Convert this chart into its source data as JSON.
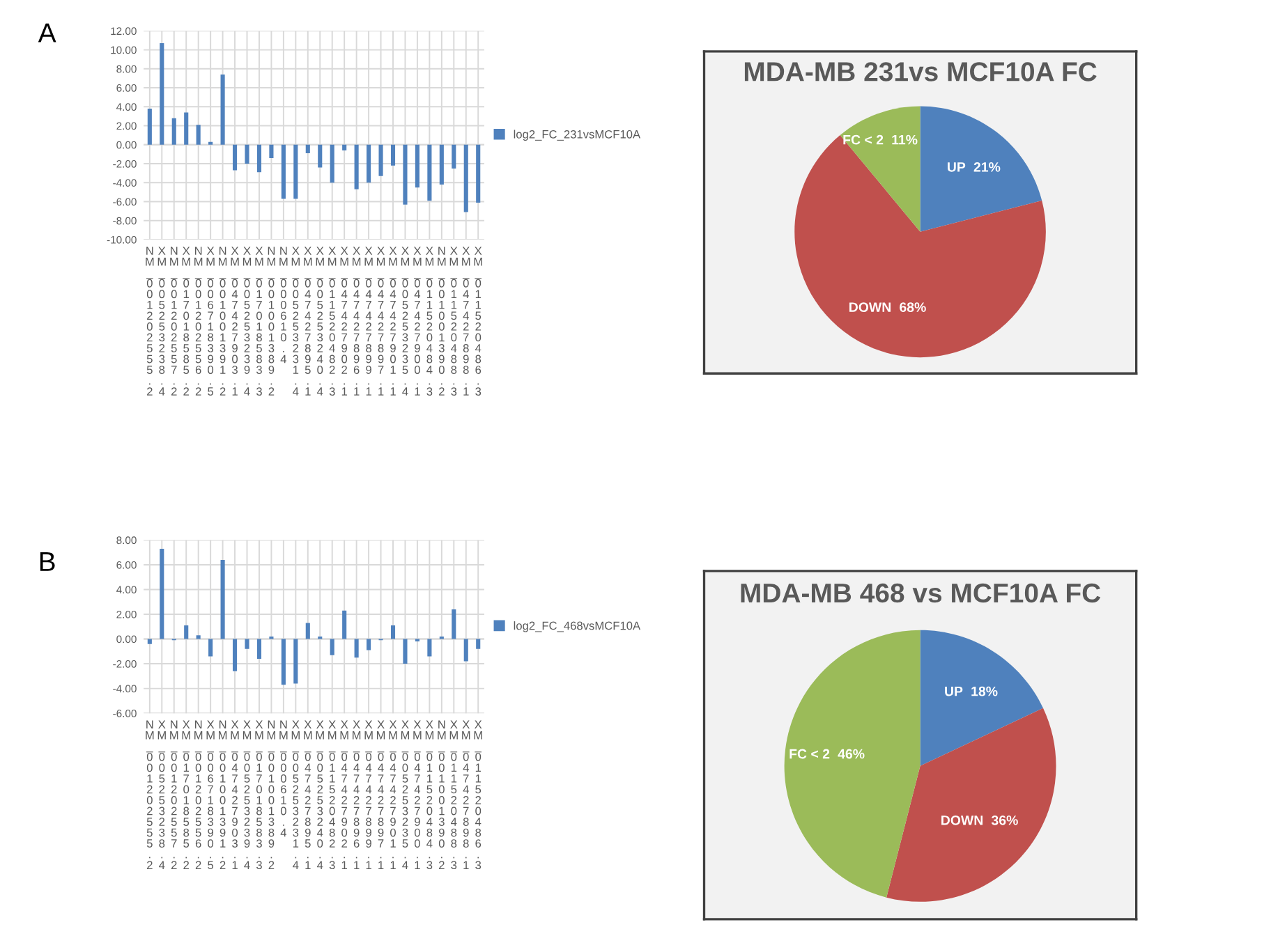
{
  "chart_data": [
    {
      "type": "bar",
      "annotations": [
        "A"
      ],
      "categories": [
        "NM_001202555.2",
        "XM_005253238.4",
        "NM_001202557.2",
        "XM_017018585.2",
        "NM_001202556.2",
        "XM_006718390.5",
        "NM_001001391.2",
        "XM_047427903.1",
        "XM_005253239.4",
        "XM_017018583.3",
        "NM_001001389.2",
        "NM_000610.4",
        "XM_005253231.4",
        "XM_047427895.1",
        "XM_005253240.4",
        "XM_011520482.3",
        "XM_047427902.1",
        "XM_047427896.1",
        "XM_047427899.1",
        "XM_047427897.1",
        "XM_047427901.1",
        "XM_005253235.4",
        "XM_047427900.1",
        "XM_011520484.3",
        "NM_001001390.2",
        "XM_011520488.3",
        "XM_047427898.1",
        "XM_011520486.3"
      ],
      "series": [
        {
          "name": "log2_FC_231vsMCF10A",
          "color": "#4f81bd",
          "values": [
            3.8,
            10.7,
            2.8,
            3.4,
            2.1,
            0.3,
            7.4,
            -2.7,
            -2.0,
            -2.9,
            -1.4,
            -5.7,
            -5.7,
            -0.9,
            -2.4,
            -4.0,
            -0.6,
            -4.7,
            -4.0,
            -3.3,
            -2.2,
            -6.3,
            -4.5,
            -5.9,
            -4.2,
            -2.5,
            -7.1,
            -6.1
          ]
        }
      ],
      "ylim": [
        -10,
        12
      ],
      "yticks": [
        {
          "value": -10,
          "label": "-10.00"
        },
        {
          "value": -8,
          "label": "-8.00"
        },
        {
          "value": -6,
          "label": "-6.00"
        },
        {
          "value": -4,
          "label": "-4.00"
        },
        {
          "value": -2,
          "label": "-2.00"
        },
        {
          "value": 0,
          "label": "0.00"
        },
        {
          "value": 2,
          "label": "2.00"
        },
        {
          "value": 4,
          "label": "4.00"
        },
        {
          "value": 6,
          "label": "6.00"
        },
        {
          "value": 8,
          "label": "8.00"
        },
        {
          "value": 10,
          "label": "10.00"
        },
        {
          "value": 12,
          "label": "12.00"
        }
      ],
      "grid": true,
      "legend": "right"
    },
    {
      "type": "pie",
      "title": "MDA-MB 231vs MCF10A FC",
      "categories": [
        "UP",
        "DOWN",
        "FC < 2"
      ],
      "values": [
        21,
        68,
        11
      ],
      "value_labels": [
        "21%",
        "68%",
        "11%"
      ],
      "colors": [
        "#4f81bd",
        "#c0504d",
        "#9bbb59"
      ]
    },
    {
      "type": "bar",
      "annotations": [
        "B"
      ],
      "categories": [
        "NM_001202555.2",
        "XM_005253238.4",
        "NM_001202557.2",
        "XM_017018585.2",
        "NM_001202556.2",
        "XM_006718390.5",
        "NM_001001391.2",
        "XM_047427903.1",
        "XM_005253239.4",
        "XM_017018583.3",
        "NM_001001389.2",
        "NM_000610.4",
        "XM_005253231.4",
        "XM_047427895.1",
        "XM_005253240.4",
        "XM_011520482.3",
        "XM_047427902.1",
        "XM_047427896.1",
        "XM_047427899.1",
        "XM_047427897.1",
        "XM_047427901.1",
        "XM_005253235.4",
        "XM_047427900.1",
        "XM_011520484.3",
        "NM_001001390.2",
        "XM_011520488.3",
        "XM_047427898.1",
        "XM_011520486.3"
      ],
      "series": [
        {
          "name": "log2_FC_468vsMCF10A",
          "color": "#4f81bd",
          "values": [
            -0.4,
            7.3,
            -0.1,
            1.1,
            0.3,
            -1.4,
            6.4,
            -2.6,
            -0.8,
            -1.6,
            0.2,
            -3.7,
            -3.6,
            1.3,
            0.2,
            -1.3,
            2.3,
            -1.5,
            -0.9,
            -0.1,
            1.1,
            -2.0,
            -0.2,
            -1.4,
            0.2,
            2.4,
            -1.8,
            -0.8
          ]
        }
      ],
      "ylim": [
        -6,
        8
      ],
      "yticks": [
        {
          "value": -6,
          "label": "-6.00"
        },
        {
          "value": -4,
          "label": "-4.00"
        },
        {
          "value": -2,
          "label": "-2.00"
        },
        {
          "value": 0,
          "label": "0.00"
        },
        {
          "value": 2,
          "label": "2.00"
        },
        {
          "value": 4,
          "label": "4.00"
        },
        {
          "value": 6,
          "label": "6.00"
        },
        {
          "value": 8,
          "label": "8.00"
        }
      ],
      "grid": true,
      "legend": "right"
    },
    {
      "type": "pie",
      "title": "MDA-MB 468 vs MCF10A FC",
      "categories": [
        "UP",
        "DOWN",
        "FC < 2"
      ],
      "values": [
        18,
        36,
        46
      ],
      "value_labels": [
        "18%",
        "36%",
        "46%"
      ],
      "colors": [
        "#4f81bd",
        "#c0504d",
        "#9bbb59"
      ]
    }
  ]
}
